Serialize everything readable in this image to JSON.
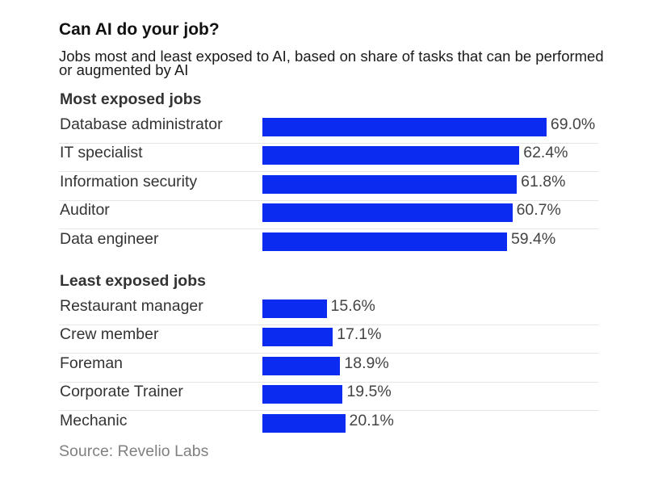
{
  "chart": {
    "title": "Can AI do your job?",
    "subtitle": "Jobs most and least exposed to AI, based on share of tasks that can be performed or augmented by AI",
    "source": "Source: Revelio Labs"
  },
  "chart_data": [
    {
      "type": "bar",
      "orientation": "horizontal",
      "title": "Most exposed jobs",
      "categories": [
        "Database administrator",
        "IT specialist",
        "Information security",
        "Auditor",
        "Data engineer"
      ],
      "values": [
        69.0,
        62.4,
        61.8,
        60.7,
        59.4
      ],
      "value_labels": [
        "69.0%",
        "62.4%",
        "61.8%",
        "60.7%",
        "59.4%"
      ],
      "unit": "%",
      "color": "#0b2cf0"
    },
    {
      "type": "bar",
      "orientation": "horizontal",
      "title": "Least exposed jobs",
      "categories": [
        "Restaurant manager",
        "Crew member",
        "Foreman",
        "Corporate Trainer",
        "Mechanic"
      ],
      "values": [
        15.6,
        17.1,
        18.9,
        19.5,
        20.1
      ],
      "value_labels": [
        "15.6%",
        "17.1%",
        "18.9%",
        "19.5%",
        "20.1%"
      ],
      "unit": "%",
      "color": "#0b2cf0"
    }
  ]
}
